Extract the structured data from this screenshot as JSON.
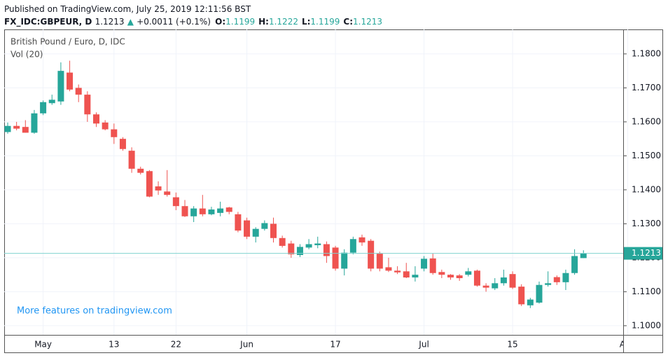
{
  "header": {
    "published": "Published on TradingView.com, July 25, 2019 12:11:56 BST",
    "symbol": "FX_IDC:GBPEUR, D",
    "price": "1.1213",
    "change": "+0.0011 (+0.1%)",
    "ohlc": [
      {
        "label": "O:",
        "value": "1.1199"
      },
      {
        "label": "H:",
        "value": "1.1222"
      },
      {
        "label": "L:",
        "value": "1.1199"
      },
      {
        "label": "C:",
        "value": "1.1213"
      }
    ]
  },
  "chart_data": {
    "type": "candlestick",
    "title": "British Pound / Euro, D, IDC",
    "subtitle": "Vol (20)",
    "annotation": "More features on tradingview.com",
    "categories": [
      null,
      null,
      null,
      null,
      "May",
      null,
      null,
      null,
      null,
      null,
      null,
      null,
      "13",
      null,
      null,
      null,
      null,
      null,
      null,
      "22",
      null,
      null,
      null,
      null,
      null,
      null,
      null,
      "Jun",
      null,
      null,
      null,
      null,
      null,
      null,
      null,
      null,
      null,
      "17",
      null,
      null,
      null,
      null,
      null,
      null,
      null,
      null,
      null,
      "Jul",
      null,
      null,
      null,
      null,
      null,
      null,
      null,
      null,
      null,
      "15",
      null,
      null,
      null,
      null,
      null,
      null,
      null,
      null,
      null,
      null,
      null,
      null,
      "Aug"
    ],
    "open": [
      1.157,
      1.1588,
      1.1585,
      1.1568,
      1.1625,
      1.1655,
      1.166,
      1.1745,
      1.17,
      1.168,
      1.1622,
      1.1598,
      1.1578,
      1.155,
      1.1515,
      1.1462,
      1.1455,
      1.141,
      1.1395,
      1.1378,
      1.1352,
      1.1322,
      1.1345,
      1.1328,
      1.1332,
      1.1348,
      1.1328,
      1.131,
      1.1262,
      1.1285,
      1.13,
      1.1258,
      1.1242,
      1.1208,
      1.123,
      1.1237,
      1.124,
      1.123,
      1.1168,
      1.1215,
      1.126,
      1.125,
      1.1212,
      1.1172,
      1.1162,
      1.116,
      1.1142,
      1.1168,
      1.1198,
      1.1158,
      1.115,
      1.1148,
      1.115,
      1.1162,
      1.1118,
      1.111,
      1.1125,
      1.1152,
      1.1115,
      1.106,
      1.1068,
      1.112,
      1.1143,
      1.1128,
      1.1155,
      1.1199,
      null,
      null,
      null,
      null,
      null
    ],
    "high": [
      1.1598,
      1.16,
      1.1605,
      1.1635,
      1.1663,
      1.168,
      1.1775,
      1.178,
      1.171,
      1.169,
      1.1628,
      1.1605,
      1.1595,
      1.1555,
      1.1525,
      1.1468,
      1.1458,
      1.1425,
      1.1458,
      1.1392,
      1.137,
      1.1352,
      1.1385,
      1.135,
      1.1365,
      1.135,
      1.1335,
      1.1318,
      1.129,
      1.131,
      1.1318,
      1.1265,
      1.125,
      1.124,
      1.1255,
      1.1262,
      1.1248,
      1.1235,
      1.1225,
      1.1262,
      1.1268,
      1.1255,
      1.1218,
      1.12,
      1.1175,
      1.1185,
      1.1175,
      1.1205,
      1.1212,
      1.1165,
      1.1152,
      1.1152,
      1.117,
      1.1165,
      1.1125,
      1.114,
      1.1165,
      1.116,
      1.1122,
      1.1082,
      1.113,
      1.116,
      1.1148,
      1.1165,
      1.1225,
      1.1222,
      null,
      null,
      null,
      null,
      null
    ],
    "low": [
      1.1565,
      1.1575,
      1.1568,
      1.1565,
      1.162,
      1.165,
      1.165,
      1.169,
      1.1658,
      1.16,
      1.1585,
      1.1575,
      1.1535,
      1.1515,
      1.145,
      1.1445,
      1.1378,
      1.1385,
      1.138,
      1.134,
      1.132,
      1.1305,
      1.1322,
      1.1325,
      1.1322,
      1.1328,
      1.1275,
      1.1255,
      1.1245,
      1.128,
      1.1245,
      1.123,
      1.12,
      1.1202,
      1.1225,
      1.1228,
      1.1185,
      1.1162,
      1.1148,
      1.121,
      1.1235,
      1.116,
      1.116,
      1.1158,
      1.1152,
      1.114,
      1.113,
      1.116,
      1.115,
      1.114,
      1.1135,
      1.1132,
      1.1145,
      1.1115,
      1.11,
      1.1105,
      1.1118,
      1.1108,
      1.1058,
      1.1052,
      1.1065,
      1.1115,
      1.112,
      1.1105,
      1.115,
      1.1199,
      null,
      null,
      null,
      null,
      null
    ],
    "close": [
      1.1588,
      1.158,
      1.1568,
      1.1625,
      1.1658,
      1.1665,
      1.175,
      1.1695,
      1.168,
      1.1622,
      1.1595,
      1.1578,
      1.1555,
      1.152,
      1.1462,
      1.145,
      1.138,
      1.1398,
      1.1385,
      1.1352,
      1.1322,
      1.1345,
      1.1328,
      1.1342,
      1.1345,
      1.1335,
      1.128,
      1.1262,
      1.1285,
      1.1302,
      1.1258,
      1.1235,
      1.121,
      1.1232,
      1.124,
      1.1242,
      1.1205,
      1.1168,
      1.1215,
      1.1255,
      1.1245,
      1.1168,
      1.1168,
      1.1162,
      1.1157,
      1.1142,
      1.115,
      1.1197,
      1.1155,
      1.115,
      1.1142,
      1.114,
      1.116,
      1.1118,
      1.1112,
      1.1125,
      1.1142,
      1.1112,
      1.1063,
      1.1077,
      1.112,
      1.1125,
      1.1128,
      1.1155,
      1.1205,
      1.1213,
      null,
      null,
      null,
      null,
      null
    ],
    "up_color": "#26a69a",
    "down_color": "#ef5350",
    "ylim": [
      1.0973,
      1.1872
    ],
    "yticks": [
      {
        "value": 1.1,
        "label": "1.1000"
      },
      {
        "value": 1.11,
        "label": "1.1100"
      },
      {
        "value": 1.12,
        "label": "1.1200"
      },
      {
        "value": 1.13,
        "label": "1.1300"
      },
      {
        "value": 1.14,
        "label": "1.1400"
      },
      {
        "value": 1.15,
        "label": "1.1500"
      },
      {
        "value": 1.16,
        "label": "1.1600"
      },
      {
        "value": 1.17,
        "label": "1.1700"
      },
      {
        "value": 1.18,
        "label": "1.1800"
      }
    ],
    "last_price": {
      "value": 1.1213,
      "label": "1.1213"
    },
    "grid": true
  }
}
